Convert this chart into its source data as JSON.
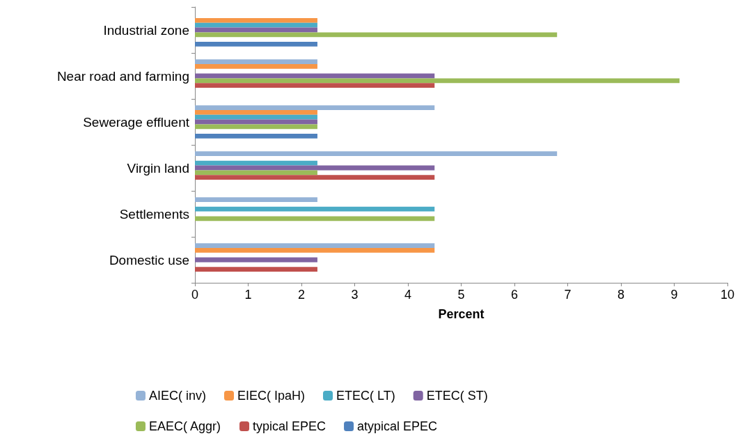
{
  "chart_data": {
    "type": "bar",
    "orientation": "horizontal",
    "xlabel": "Percent",
    "categories": [
      "Industrial zone",
      "Near road and farming",
      "Sewerage effluent",
      "Virgin land",
      "Settlements",
      "Domestic use"
    ],
    "series": [
      {
        "name": "AIEC( inv)",
        "color": "#95b3d7",
        "values": [
          null,
          2.3,
          4.5,
          6.8,
          2.3,
          4.5
        ]
      },
      {
        "name": "EIEC( IpaH)",
        "color": "#f79646",
        "values": [
          2.3,
          2.3,
          2.3,
          null,
          null,
          4.5
        ]
      },
      {
        "name": "ETEC( LT)",
        "color": "#4bacc6",
        "values": [
          2.3,
          null,
          2.3,
          2.3,
          4.5,
          null
        ]
      },
      {
        "name": "ETEC( ST)",
        "color": "#8064a2",
        "values": [
          2.3,
          4.5,
          2.3,
          4.5,
          null,
          2.3
        ]
      },
      {
        "name": "EAEC( Aggr)",
        "color": "#9bbb59",
        "values": [
          6.8,
          9.1,
          2.3,
          2.3,
          4.5,
          null
        ]
      },
      {
        "name": "typical EPEC",
        "color": "#c0504d",
        "values": [
          null,
          4.5,
          null,
          4.5,
          null,
          2.3
        ]
      },
      {
        "name": "atypical EPEC",
        "color": "#4f81bd",
        "values": [
          2.3,
          null,
          2.3,
          null,
          null,
          null
        ]
      }
    ],
    "xlim": [
      0,
      10
    ],
    "xticks": [
      0,
      1,
      2,
      3,
      4,
      5,
      6,
      7,
      8,
      9,
      10
    ],
    "grid": false,
    "legend": "bottom"
  }
}
